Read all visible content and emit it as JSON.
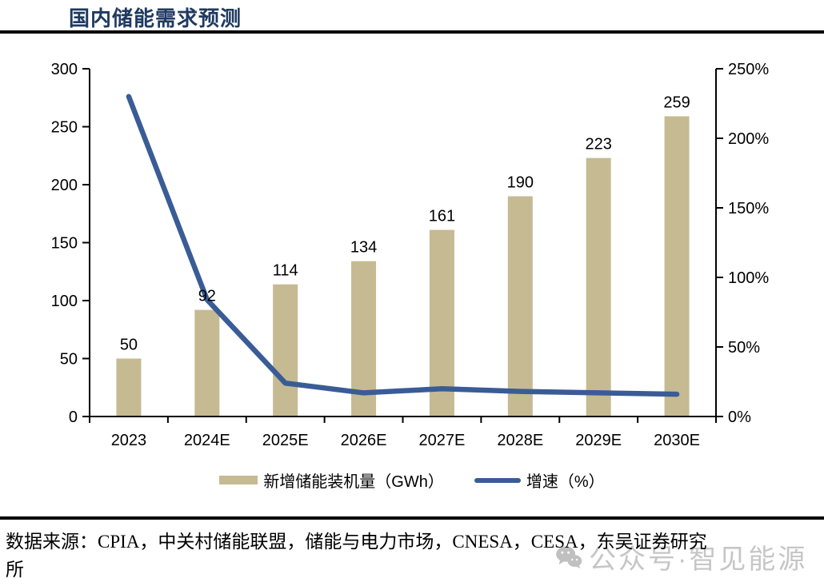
{
  "header": {
    "title": "国内储能需求预测"
  },
  "chart_data": {
    "type": "bar",
    "subtype": "combo bar+line, dual axis",
    "title": "国内储能需求预测",
    "categories": [
      "2023",
      "2024E",
      "2025E",
      "2026E",
      "2027E",
      "2028E",
      "2029E",
      "2030E"
    ],
    "series": [
      {
        "name": "新增储能装机量（GWh）",
        "type": "bar",
        "axis": "left",
        "values": [
          50,
          92,
          114,
          134,
          161,
          190,
          223,
          259
        ],
        "labels": [
          "50",
          "92",
          "114",
          "134",
          "161",
          "190",
          "223",
          "259"
        ],
        "color": "#c5ba92"
      },
      {
        "name": "增速（%）",
        "type": "line",
        "axis": "right",
        "values": [
          230,
          84,
          24,
          17,
          20,
          18,
          17,
          16
        ],
        "color": "#3a5c96"
      }
    ],
    "left_axis": {
      "min": 0,
      "max": 300,
      "step": 50,
      "ticks": [
        "0",
        "50",
        "100",
        "150",
        "200",
        "250",
        "300"
      ]
    },
    "right_axis": {
      "min": 0,
      "max": 250,
      "step": 50,
      "ticks": [
        "0%",
        "50%",
        "100%",
        "150%",
        "200%",
        "250%"
      ]
    },
    "grid": false,
    "legend_position": "bottom"
  },
  "footer": {
    "source_line1": "数据来源：CPIA，中关村储能联盟，储能与电力市场，CNESA，CESA，东吴证券研究",
    "source_line2": "所"
  },
  "watermark": {
    "icon": "wechat-icon",
    "text": "公众号·智见能源"
  },
  "colors": {
    "bar": "#c5ba92",
    "line": "#3a5c96",
    "title": "#1f3a60",
    "axis": "#000000",
    "watermark": "#c6c6c6"
  }
}
